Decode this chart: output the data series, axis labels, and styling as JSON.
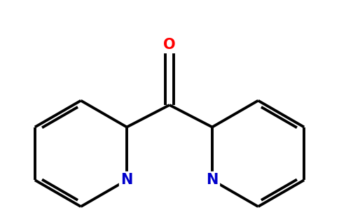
{
  "background_color": "#ffffff",
  "bond_color": "#000000",
  "N_color": "#0000cc",
  "O_color": "#ff0000",
  "bond_width": 2.8,
  "font_size_atom": 15,
  "fig_width": 4.84,
  "fig_height": 3.0,
  "dpi": 100,
  "xlim": [
    -2.2,
    2.2
  ],
  "ylim": [
    -1.4,
    1.4
  ]
}
